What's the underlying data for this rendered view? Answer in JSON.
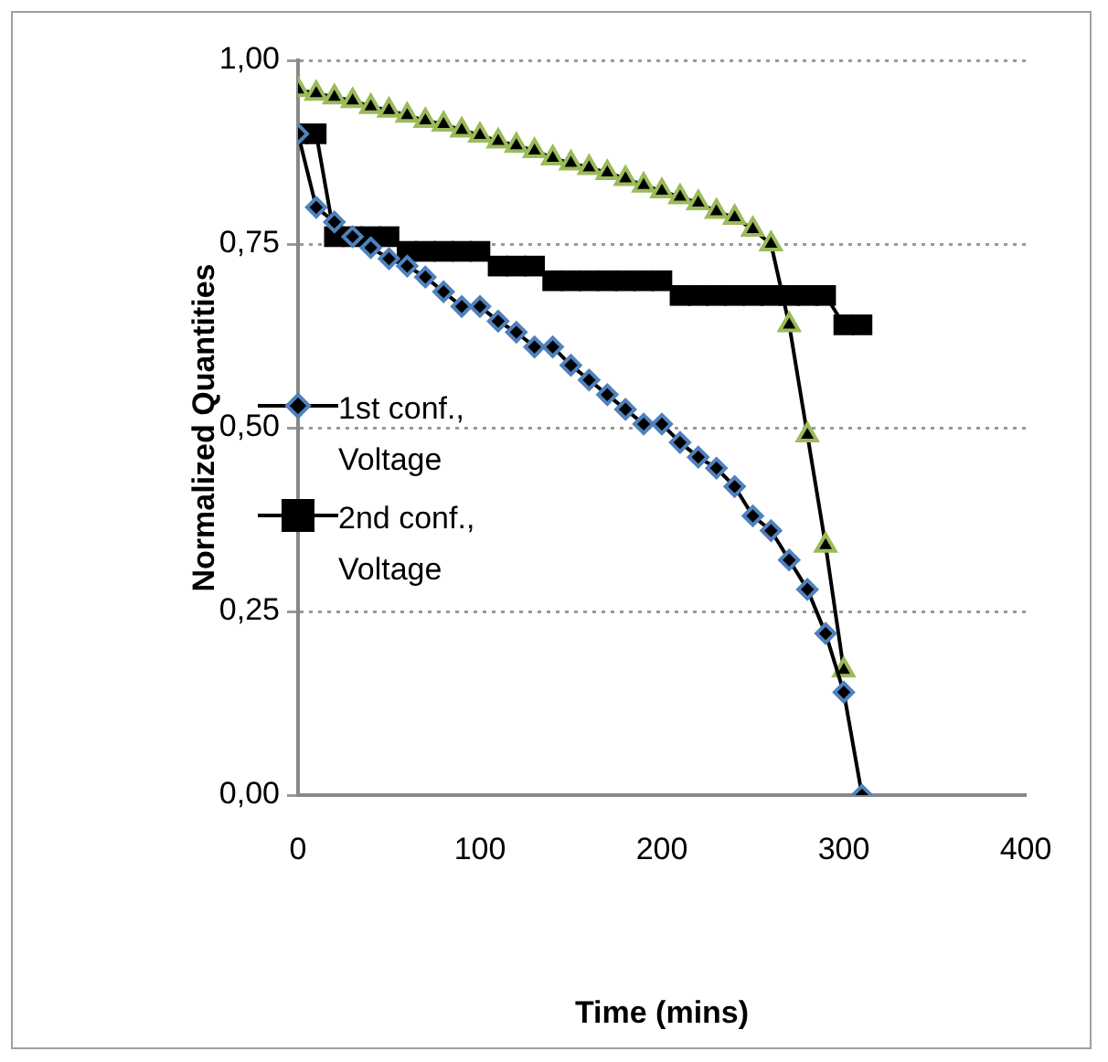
{
  "chart_data": {
    "type": "line",
    "xlabel": "Time (mins)",
    "ylabel": "Normalized Quantities",
    "xlim": [
      0,
      400
    ],
    "xticks": [
      0,
      100,
      200,
      300,
      400
    ],
    "ylim": [
      0,
      1
    ],
    "yticks": [
      {
        "value": 0,
        "label": "0,00"
      },
      {
        "value": 0.25,
        "label": "0,25"
      },
      {
        "value": 0.5,
        "label": "0,50"
      },
      {
        "value": 0.75,
        "label": "0,75"
      },
      {
        "value": 1,
        "label": "1,00"
      }
    ],
    "grid": "y",
    "legend": "left",
    "line_style": "solid",
    "series": [
      {
        "name": "1st conf., Voltage",
        "color": "#4f81bd",
        "marker": "diamond",
        "x": [
          0,
          10,
          20,
          30,
          40,
          50,
          60,
          70,
          80,
          90,
          100,
          110,
          120,
          130,
          140,
          150,
          160,
          170,
          180,
          190,
          200,
          210,
          220,
          230,
          240,
          250,
          260,
          270,
          280,
          290,
          300,
          310
        ],
        "values": [
          0.9,
          0.8,
          0.78,
          0.76,
          0.745,
          0.73,
          0.72,
          0.705,
          0.685,
          0.665,
          0.665,
          0.645,
          0.63,
          0.61,
          0.61,
          0.585,
          0.565,
          0.545,
          0.525,
          0.505,
          0.505,
          0.48,
          0.46,
          0.445,
          0.42,
          0.38,
          0.36,
          0.32,
          0.28,
          0.22,
          0.14,
          0
        ]
      },
      {
        "name": "2nd conf., Voltage",
        "color": "#000000",
        "marker": "square",
        "x": [
          0,
          10,
          20,
          30,
          40,
          50,
          60,
          70,
          80,
          90,
          100,
          110,
          120,
          130,
          140,
          150,
          160,
          170,
          180,
          190,
          200,
          210,
          220,
          230,
          240,
          250,
          260,
          270,
          280,
          290,
          300,
          310
        ],
        "values": [
          0.9,
          0.9,
          0.76,
          0.76,
          0.76,
          0.76,
          0.74,
          0.74,
          0.74,
          0.74,
          0.74,
          0.72,
          0.72,
          0.72,
          0.7,
          0.7,
          0.7,
          0.7,
          0.7,
          0.7,
          0.7,
          0.68,
          0.68,
          0.68,
          0.68,
          0.68,
          0.68,
          0.68,
          0.68,
          0.68,
          0.64,
          0.64
        ]
      },
      {
        "color": "#9bbb59",
        "marker": "triangle",
        "x": [
          0,
          10,
          20,
          30,
          40,
          50,
          60,
          70,
          80,
          90,
          100,
          110,
          120,
          130,
          140,
          150,
          160,
          170,
          180,
          190,
          200,
          210,
          220,
          230,
          240,
          250,
          260,
          270,
          280,
          290,
          300
        ],
        "values": [
          0.96,
          0.955,
          0.95,
          0.945,
          0.937,
          0.932,
          0.925,
          0.918,
          0.913,
          0.905,
          0.898,
          0.89,
          0.884,
          0.877,
          0.867,
          0.86,
          0.854,
          0.847,
          0.839,
          0.83,
          0.822,
          0.814,
          0.806,
          0.794,
          0.786,
          0.77,
          0.75,
          0.64,
          0.49,
          0.34,
          0.17
        ]
      }
    ]
  }
}
